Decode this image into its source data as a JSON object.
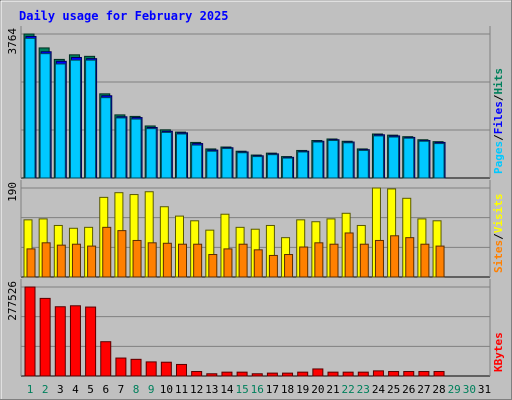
{
  "chart_data": [
    {
      "type": "bar",
      "title": "Daily usage for February 2025",
      "categories": [
        "1",
        "2",
        "3",
        "4",
        "5",
        "6",
        "7",
        "8",
        "9",
        "10",
        "11",
        "12",
        "13",
        "14",
        "15",
        "16",
        "17",
        "18",
        "19",
        "20",
        "21",
        "22",
        "23",
        "24",
        "25",
        "26",
        "27",
        "28",
        "29",
        "30",
        "31"
      ],
      "weekend_days": [
        "1",
        "2",
        "8",
        "9",
        "15",
        "16",
        "22",
        "23",
        "29",
        "30"
      ],
      "ymax_label": "3764",
      "ylim": [
        0,
        3764
      ],
      "grid": true,
      "label_words": [
        "Pages",
        "Files",
        "Hits"
      ],
      "series": [
        {
          "name": "Hits",
          "color": "#00805c",
          "values": [
            3764,
            3400,
            3100,
            3220,
            3180,
            2200,
            1650,
            1610,
            1360,
            1260,
            1200,
            930,
            760,
            810,
            700,
            600,
            650,
            560,
            720,
            980,
            1020,
            960,
            760,
            1150,
            1120,
            1080,
            1000,
            950,
            0,
            0,
            0
          ]
        },
        {
          "name": "Files",
          "color": "#0000ff",
          "values": [
            3700,
            3300,
            3050,
            3150,
            3120,
            2150,
            1600,
            1580,
            1320,
            1220,
            1180,
            900,
            730,
            790,
            680,
            580,
            630,
            540,
            700,
            960,
            1000,
            940,
            740,
            1130,
            1100,
            1060,
            980,
            930,
            0,
            0,
            0
          ]
        },
        {
          "name": "Pages",
          "color": "#00c8ff",
          "values": [
            3650,
            3250,
            2980,
            3080,
            3080,
            2100,
            1570,
            1540,
            1290,
            1190,
            1150,
            860,
            700,
            770,
            660,
            560,
            610,
            520,
            680,
            940,
            980,
            920,
            720,
            1100,
            1070,
            1040,
            960,
            900,
            0,
            0,
            0
          ]
        }
      ]
    },
    {
      "type": "bar",
      "ymax_label": "190",
      "ylim": [
        0,
        190
      ],
      "grid": true,
      "label_words": [
        "Sites",
        "Visits"
      ],
      "series": [
        {
          "name": "Visits",
          "color": "#ffff00",
          "values": [
            122,
            124,
            110,
            104,
            106,
            170,
            180,
            176,
            182,
            150,
            130,
            120,
            100,
            134,
            106,
            102,
            110,
            84,
            122,
            118,
            124,
            136,
            110,
            190,
            188,
            168,
            124,
            120,
            0,
            0,
            0
          ]
        },
        {
          "name": "Sites",
          "color": "#ff8000",
          "values": [
            60,
            73,
            68,
            70,
            66,
            106,
            99,
            78,
            73,
            72,
            70,
            70,
            48,
            60,
            70,
            58,
            46,
            48,
            64,
            73,
            70,
            94,
            70,
            78,
            88,
            84,
            70,
            66,
            0,
            0,
            0
          ]
        }
      ]
    },
    {
      "type": "bar",
      "ymax_label": "277526",
      "ylim": [
        0,
        277526
      ],
      "grid": true,
      "label_words": [
        "KBytes"
      ],
      "series": [
        {
          "name": "KBytes",
          "color": "#ff0000",
          "values": [
            277526,
            242000,
            216000,
            219000,
            215000,
            107000,
            56000,
            52000,
            44000,
            43000,
            36000,
            14000,
            7000,
            12000,
            12000,
            7000,
            9000,
            9000,
            12000,
            22000,
            12000,
            12000,
            12000,
            16000,
            14000,
            14000,
            14000,
            14000,
            0,
            0,
            0
          ]
        }
      ]
    }
  ],
  "colors": {
    "frame": "#c0c0c0",
    "plot": "#c0c0c0",
    "grid": "#808080",
    "title": "#0000ff",
    "weekday_label": "#000000",
    "weekend_label": "#00805c",
    "separator": "#000000"
  }
}
